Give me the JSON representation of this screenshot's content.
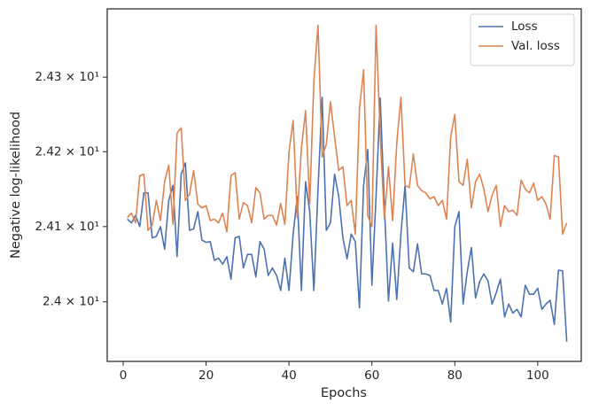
{
  "chart_data": {
    "type": "line",
    "x_label": "Epochs",
    "y_label": "Negative log-likelihood",
    "x": [
      1,
      2,
      3,
      4,
      5,
      6,
      7,
      8,
      9,
      10,
      11,
      12,
      13,
      14,
      15,
      16,
      17,
      18,
      19,
      20,
      21,
      22,
      23,
      24,
      25,
      26,
      27,
      28,
      29,
      30,
      31,
      32,
      33,
      34,
      35,
      36,
      37,
      38,
      39,
      40,
      41,
      42,
      43,
      44,
      45,
      46,
      47,
      48,
      49,
      50,
      51,
      52,
      53,
      54,
      55,
      56,
      57,
      58,
      59,
      60,
      61,
      62,
      63,
      64,
      65,
      66,
      67,
      68,
      69,
      70,
      71,
      72,
      73,
      74,
      75,
      76,
      77,
      78,
      79,
      80,
      81,
      82,
      83,
      84,
      85,
      86,
      87,
      88,
      89,
      90,
      91,
      92,
      93,
      94,
      95,
      96,
      97,
      98,
      99,
      100,
      101,
      102,
      103,
      104,
      105,
      106,
      107
    ],
    "series": [
      {
        "name": "Loss",
        "color": "#4c72b0",
        "values": [
          24.11,
          24.105,
          24.115,
          24.1,
          24.145,
          24.145,
          24.085,
          24.087,
          24.1,
          24.07,
          24.135,
          24.155,
          24.06,
          24.17,
          24.185,
          24.095,
          24.097,
          24.12,
          24.082,
          24.079,
          24.08,
          24.055,
          24.058,
          24.05,
          24.06,
          24.03,
          24.085,
          24.087,
          24.045,
          24.063,
          24.063,
          24.033,
          24.08,
          24.07,
          24.035,
          24.045,
          24.035,
          24.015,
          24.058,
          24.015,
          24.09,
          24.14,
          24.015,
          24.16,
          24.12,
          24.015,
          24.15,
          24.273,
          24.095,
          24.105,
          24.17,
          24.14,
          24.085,
          24.057,
          24.09,
          24.08,
          23.992,
          24.155,
          24.203,
          24.022,
          24.14,
          24.272,
          24.13,
          24.001,
          24.078,
          24.003,
          24.09,
          24.155,
          24.045,
          24.04,
          24.077,
          24.037,
          24.037,
          24.035,
          24.015,
          24.015,
          23.997,
          24.018,
          23.973,
          24.1,
          24.12,
          23.997,
          24.04,
          24.072,
          24.005,
          24.027,
          24.037,
          24.028,
          23.997,
          24.012,
          24.03,
          23.98,
          23.997,
          23.985,
          23.99,
          23.98,
          24.022,
          24.01,
          24.01,
          24.018,
          23.99,
          23.997,
          24.002,
          23.97,
          24.042,
          24.041,
          23.947
        ]
      },
      {
        "name": "Val. loss",
        "color": "#dd8452",
        "values": [
          24.112,
          24.118,
          24.105,
          24.168,
          24.17,
          24.095,
          24.102,
          24.135,
          24.108,
          24.16,
          24.182,
          24.103,
          24.225,
          24.232,
          24.135,
          24.143,
          24.175,
          24.13,
          24.125,
          24.128,
          24.108,
          24.11,
          24.105,
          24.118,
          24.093,
          24.168,
          24.172,
          24.11,
          24.132,
          24.128,
          24.105,
          24.152,
          24.145,
          24.11,
          24.115,
          24.115,
          24.102,
          24.131,
          24.103,
          24.2,
          24.242,
          24.112,
          24.205,
          24.255,
          24.13,
          24.295,
          24.37,
          24.193,
          24.21,
          24.267,
          24.22,
          24.175,
          24.18,
          24.128,
          24.135,
          24.09,
          24.258,
          24.31,
          24.115,
          24.1,
          24.37,
          24.222,
          24.11,
          24.18,
          24.108,
          24.212,
          24.273,
          24.155,
          24.152,
          24.197,
          24.155,
          24.148,
          24.145,
          24.137,
          24.14,
          24.128,
          24.135,
          24.11,
          24.22,
          24.25,
          24.16,
          24.155,
          24.19,
          24.125,
          24.16,
          24.17,
          24.15,
          24.12,
          24.142,
          24.155,
          24.1,
          24.128,
          24.12,
          24.122,
          24.115,
          24.162,
          24.15,
          24.145,
          24.158,
          24.135,
          24.14,
          24.13,
          24.11,
          24.195,
          24.193,
          24.09,
          24.105
        ]
      }
    ],
    "xlim": [
      -3.85,
      110.5
    ],
    "xticks": [
      0,
      20,
      40,
      60,
      80,
      100
    ],
    "ylim": [
      23.921,
      24.392
    ],
    "ylog": true,
    "yticks": [
      {
        "value": 24.0,
        "label": "2.4 × 10¹"
      },
      {
        "value": 24.1,
        "label": "2.41 × 10¹"
      },
      {
        "value": 24.2,
        "label": "2.42 × 10¹"
      },
      {
        "value": 24.3,
        "label": "2.43 × 10¹"
      }
    ],
    "legend": "upper right",
    "grid": false
  }
}
